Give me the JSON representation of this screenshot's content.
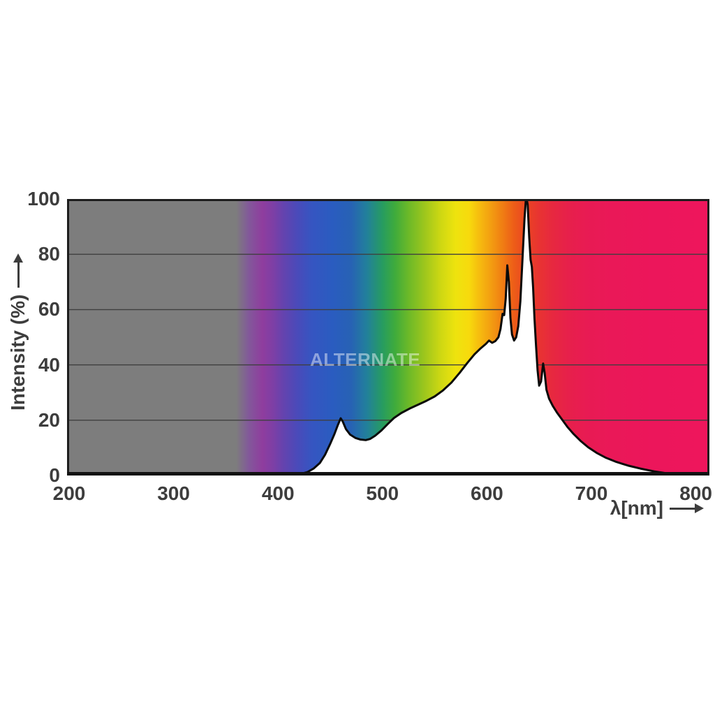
{
  "page": {
    "background": "#ffffff"
  },
  "watermark": {
    "text": "ALTERNATE"
  },
  "colors": {
    "grid": "#3f3f3f",
    "border": "#1d1d1d",
    "bottom_axis": "#111111",
    "axis_text": "#3d3d3d",
    "curve": "#0a0a0a",
    "under_curve_fill": "#ffffff",
    "uv_gray": "#7d7d7d",
    "far_red_magenta": "#ee165c"
  },
  "chart_data": {
    "type": "area",
    "title": "",
    "xlabel": "λ[nm]",
    "ylabel": "Intensity (%)",
    "x_ticks": [
      200,
      300,
      400,
      500,
      600,
      700,
      800
    ],
    "y_ticks": [
      0,
      20,
      40,
      60,
      80,
      100
    ],
    "x_range": [
      198,
      813
    ],
    "y_range": [
      0,
      100
    ],
    "grid": "horizontal lines at 20, 40, 60, 80",
    "legend": "none",
    "description": "Lamp spectral power distribution: intensity (%) vs wavelength (nm) drawn as a black curve; the area above the curve is a visible-spectrum color gradient (gray below ~370 nm), the area under the curve is white.",
    "notable_peaks": [
      {
        "nm": 460,
        "pct": 21
      },
      {
        "nm": 486,
        "pct": 13,
        "note": "local minimum"
      },
      {
        "nm": 603,
        "pct": 49,
        "note": "small bump"
      },
      {
        "nm": 620,
        "pct": 76
      },
      {
        "nm": 638,
        "pct": 100,
        "note": "main peak, clipped at chart top"
      },
      {
        "nm": 655,
        "pct": 40
      },
      {
        "nm": 790,
        "pct": 0,
        "note": "tail reaches zero"
      }
    ],
    "series": [
      {
        "name": "spectral intensity",
        "color": "#0a0a0a",
        "points": [
          [
            198,
            0
          ],
          [
            300,
            0
          ],
          [
            405,
            0
          ],
          [
            415,
            0.2
          ],
          [
            422,
            0.6
          ],
          [
            428,
            1.2
          ],
          [
            434,
            2.5
          ],
          [
            440,
            4.5
          ],
          [
            445,
            7.5
          ],
          [
            450,
            11.5
          ],
          [
            454,
            15
          ],
          [
            457,
            18
          ],
          [
            460,
            20.7
          ],
          [
            462,
            19.5
          ],
          [
            465,
            16.8
          ],
          [
            469,
            14.8
          ],
          [
            474,
            13.6
          ],
          [
            479,
            13
          ],
          [
            484,
            12.8
          ],
          [
            488,
            13.2
          ],
          [
            493,
            14.4
          ],
          [
            499,
            16.3
          ],
          [
            505,
            18.6
          ],
          [
            511,
            20.8
          ],
          [
            518,
            22.6
          ],
          [
            526,
            24.2
          ],
          [
            534,
            25.6
          ],
          [
            542,
            27
          ],
          [
            550,
            28.6
          ],
          [
            558,
            30.8
          ],
          [
            566,
            33.6
          ],
          [
            574,
            37.2
          ],
          [
            581,
            40.6
          ],
          [
            588,
            43.8
          ],
          [
            594,
            46
          ],
          [
            599,
            47.6
          ],
          [
            602,
            48.8
          ],
          [
            605,
            48
          ],
          [
            608,
            48.6
          ],
          [
            611,
            50
          ],
          [
            613,
            53
          ],
          [
            615,
            58.5
          ],
          [
            616.5,
            58
          ],
          [
            618,
            64
          ],
          [
            619.5,
            76
          ],
          [
            621,
            70
          ],
          [
            622.5,
            57
          ],
          [
            624,
            51
          ],
          [
            626,
            48.8
          ],
          [
            628,
            50
          ],
          [
            630,
            54
          ],
          [
            632,
            63
          ],
          [
            634,
            78
          ],
          [
            636,
            93
          ],
          [
            637.5,
            101
          ],
          [
            639,
            98
          ],
          [
            640.5,
            86
          ],
          [
            641.8,
            78
          ],
          [
            643,
            75.5
          ],
          [
            644.2,
            68
          ],
          [
            645.5,
            57
          ],
          [
            647,
            47
          ],
          [
            648.5,
            38
          ],
          [
            650,
            32.5
          ],
          [
            651.8,
            34
          ],
          [
            653.8,
            40.5
          ],
          [
            655.3,
            37
          ],
          [
            657,
            31
          ],
          [
            659.5,
            27.8
          ],
          [
            663,
            25.2
          ],
          [
            667,
            22.8
          ],
          [
            672,
            20.2
          ],
          [
            677,
            17.6
          ],
          [
            683,
            15
          ],
          [
            690,
            12.4
          ],
          [
            697,
            10.2
          ],
          [
            705,
            8.2
          ],
          [
            714,
            6.4
          ],
          [
            724,
            4.9
          ],
          [
            735,
            3.6
          ],
          [
            747,
            2.5
          ],
          [
            760,
            1.5
          ],
          [
            772,
            0.8
          ],
          [
            783,
            0.3
          ],
          [
            792,
            0.05
          ],
          [
            813,
            0
          ]
        ]
      }
    ],
    "background_spectrum_stops": [
      [
        198,
        "#7d7d7d"
      ],
      [
        360,
        "#7d7d7d"
      ],
      [
        372,
        "#82589a"
      ],
      [
        385,
        "#8f3d9e"
      ],
      [
        395,
        "#7e3fa5"
      ],
      [
        405,
        "#6543ae"
      ],
      [
        418,
        "#4b4ab9"
      ],
      [
        432,
        "#3655c1"
      ],
      [
        452,
        "#2a5cc0"
      ],
      [
        470,
        "#2762b4"
      ],
      [
        485,
        "#22809b"
      ],
      [
        500,
        "#279c60"
      ],
      [
        512,
        "#3fab3c"
      ],
      [
        525,
        "#6cb928"
      ],
      [
        540,
        "#9cc61d"
      ],
      [
        555,
        "#ccd713"
      ],
      [
        570,
        "#eee30e"
      ],
      [
        583,
        "#f7da0d"
      ],
      [
        593,
        "#f6bb0f"
      ],
      [
        604,
        "#f39d11"
      ],
      [
        615,
        "#f07d13"
      ],
      [
        626,
        "#ed5d18"
      ],
      [
        638,
        "#ea4423"
      ],
      [
        650,
        "#e83332"
      ],
      [
        663,
        "#e72840"
      ],
      [
        678,
        "#e7204b"
      ],
      [
        695,
        "#e81b53"
      ],
      [
        720,
        "#ea1858"
      ],
      [
        760,
        "#ec165b"
      ],
      [
        813,
        "#ee165c"
      ]
    ]
  }
}
